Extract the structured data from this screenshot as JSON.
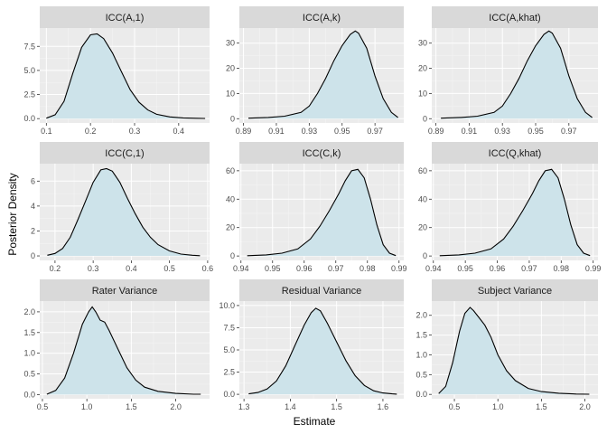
{
  "chart_data": {
    "type": "area",
    "layout": "facet-grid-3x3",
    "xlabel": "Estimate",
    "ylabel": "Posterior Density",
    "colors": {
      "panel_bg": "#ebebeb",
      "strip_bg": "#d9d9d9",
      "grid_major": "#ffffff",
      "grid_minor": "#f5f5f5",
      "fill": "#cde3ea",
      "line": "#000000"
    },
    "panels": [
      {
        "title": "ICC(A,1)",
        "xlim": [
          0.085,
          0.47
        ],
        "ylim": [
          -0.45,
          9.4
        ],
        "xticks": [
          0.1,
          0.2,
          0.3,
          0.4
        ],
        "xticklabels": [
          "0.1",
          "0.2",
          "0.3",
          "0.4"
        ],
        "yticks": [
          0,
          2.5,
          5,
          7.5
        ],
        "yticklabels": [
          "0.0",
          "2.5",
          "5.0",
          "7.5"
        ],
        "x": [
          0.1,
          0.12,
          0.14,
          0.16,
          0.18,
          0.2,
          0.215,
          0.23,
          0.25,
          0.27,
          0.29,
          0.31,
          0.33,
          0.35,
          0.38,
          0.41,
          0.44,
          0.46
        ],
        "y": [
          0.05,
          0.4,
          1.8,
          4.7,
          7.4,
          8.7,
          8.8,
          8.3,
          6.8,
          4.9,
          3.0,
          1.7,
          0.9,
          0.45,
          0.18,
          0.08,
          0.04,
          0.02
        ]
      },
      {
        "title": "ICC(A,k)",
        "xlim": [
          0.8875,
          0.9875
        ],
        "ylim": [
          -1.7,
          36.0
        ],
        "xticks": [
          0.89,
          0.91,
          0.93,
          0.95,
          0.97
        ],
        "xticklabels": [
          "0.89",
          "0.91",
          "0.93",
          "0.95",
          "0.97"
        ],
        "yticks": [
          0,
          10,
          20,
          30
        ],
        "yticklabels": [
          "0",
          "10",
          "20",
          "30"
        ],
        "x": [
          0.893,
          0.905,
          0.915,
          0.925,
          0.93,
          0.935,
          0.94,
          0.945,
          0.95,
          0.955,
          0.958,
          0.96,
          0.965,
          0.97,
          0.975,
          0.98,
          0.984
        ],
        "y": [
          0.2,
          0.5,
          1.0,
          2.5,
          5.0,
          10.0,
          16.0,
          23.0,
          29.0,
          33.5,
          34.8,
          34.0,
          28.0,
          17.0,
          8.0,
          2.5,
          0.5
        ]
      },
      {
        "title": "ICC(A,khat)",
        "xlim": [
          0.8875,
          0.9875
        ],
        "ylim": [
          -1.7,
          36.0
        ],
        "xticks": [
          0.89,
          0.91,
          0.93,
          0.95,
          0.97
        ],
        "xticklabels": [
          "0.89",
          "0.91",
          "0.93",
          "0.95",
          "0.97"
        ],
        "yticks": [
          0,
          10,
          20,
          30
        ],
        "yticklabels": [
          "0",
          "10",
          "20",
          "30"
        ],
        "x": [
          0.893,
          0.905,
          0.915,
          0.925,
          0.93,
          0.935,
          0.94,
          0.945,
          0.95,
          0.955,
          0.958,
          0.96,
          0.965,
          0.97,
          0.975,
          0.98,
          0.984
        ],
        "y": [
          0.2,
          0.5,
          1.0,
          2.5,
          5.0,
          10.0,
          16.0,
          23.0,
          29.0,
          33.5,
          34.8,
          34.0,
          28.0,
          17.0,
          8.0,
          2.5,
          0.5
        ]
      },
      {
        "title": "ICC(C,1)",
        "xlim": [
          0.16,
          0.605
        ],
        "ylim": [
          -0.36,
          7.4
        ],
        "xticks": [
          0.2,
          0.3,
          0.4,
          0.5,
          0.6
        ],
        "xticklabels": [
          "0.2",
          "0.3",
          "0.4",
          "0.5",
          "0.6"
        ],
        "yticks": [
          0,
          2,
          4,
          6
        ],
        "yticklabels": [
          "0",
          "2",
          "4",
          "6"
        ],
        "x": [
          0.18,
          0.2,
          0.22,
          0.24,
          0.26,
          0.28,
          0.3,
          0.32,
          0.335,
          0.35,
          0.37,
          0.39,
          0.41,
          0.43,
          0.45,
          0.47,
          0.5,
          0.53,
          0.56,
          0.58
        ],
        "y": [
          0.05,
          0.2,
          0.6,
          1.5,
          2.9,
          4.4,
          5.9,
          6.9,
          7.0,
          6.8,
          5.9,
          4.6,
          3.4,
          2.3,
          1.5,
          0.9,
          0.4,
          0.15,
          0.05,
          0.02
        ]
      },
      {
        "title": "ICC(C,k)",
        "xlim": [
          0.9395,
          0.9915
        ],
        "ylim": [
          -3.1,
          65.0
        ],
        "xticks": [
          0.94,
          0.95,
          0.96,
          0.97,
          0.98,
          0.99
        ],
        "xticklabels": [
          "0.94",
          "0.95",
          "0.96",
          "0.97",
          "0.98",
          "0.99"
        ],
        "yticks": [
          0,
          20,
          40,
          60
        ],
        "yticklabels": [
          "0",
          "20",
          "40",
          "60"
        ],
        "x": [
          0.942,
          0.948,
          0.953,
          0.958,
          0.962,
          0.965,
          0.968,
          0.971,
          0.973,
          0.975,
          0.977,
          0.979,
          0.981,
          0.983,
          0.985,
          0.987,
          0.989
        ],
        "y": [
          0.2,
          0.8,
          2.0,
          5.0,
          12.0,
          21.0,
          32.0,
          44.0,
          53.0,
          60.0,
          61.0,
          55.0,
          40.0,
          22.0,
          8.0,
          2.0,
          0.3
        ]
      },
      {
        "title": "ICC(Q,khat)",
        "xlim": [
          0.9395,
          0.9915
        ],
        "ylim": [
          -3.1,
          65.0
        ],
        "xticks": [
          0.94,
          0.95,
          0.96,
          0.97,
          0.98,
          0.99
        ],
        "xticklabels": [
          "0.94",
          "0.95",
          "0.96",
          "0.97",
          "0.98",
          "0.99"
        ],
        "yticks": [
          0,
          20,
          40,
          60
        ],
        "yticklabels": [
          "0",
          "20",
          "40",
          "60"
        ],
        "x": [
          0.942,
          0.948,
          0.953,
          0.958,
          0.962,
          0.965,
          0.968,
          0.971,
          0.973,
          0.975,
          0.977,
          0.979,
          0.981,
          0.983,
          0.985,
          0.987,
          0.989
        ],
        "y": [
          0.2,
          0.8,
          2.0,
          5.0,
          12.0,
          21.0,
          32.0,
          44.0,
          53.0,
          60.0,
          61.0,
          55.0,
          40.0,
          22.0,
          8.0,
          2.0,
          0.3
        ]
      },
      {
        "title": "Rater Variance",
        "xlim": [
          0.47,
          2.38
        ],
        "ylim": [
          -0.1,
          2.26
        ],
        "xticks": [
          0.5,
          1.0,
          1.5,
          2.0
        ],
        "xticklabels": [
          "0.5",
          "1.0",
          "1.5",
          "2.0"
        ],
        "yticks": [
          0,
          0.5,
          1.0,
          1.5,
          2.0
        ],
        "yticklabels": [
          "0.0",
          "0.5",
          "1.0",
          "1.5",
          "2.0"
        ],
        "x": [
          0.55,
          0.65,
          0.75,
          0.85,
          0.95,
          1.02,
          1.06,
          1.1,
          1.15,
          1.2,
          1.25,
          1.35,
          1.45,
          1.55,
          1.65,
          1.8,
          2.0,
          2.2,
          2.28
        ],
        "y": [
          0.01,
          0.1,
          0.4,
          1.0,
          1.7,
          2.0,
          2.12,
          2.0,
          1.8,
          1.75,
          1.55,
          1.1,
          0.65,
          0.35,
          0.18,
          0.08,
          0.03,
          0.01,
          0.01
        ]
      },
      {
        "title": "Residual Variance",
        "xlim": [
          1.29,
          1.645
        ],
        "ylim": [
          -0.5,
          10.5
        ],
        "xticks": [
          1.3,
          1.4,
          1.5,
          1.6
        ],
        "xticklabels": [
          "1.3",
          "1.4",
          "1.5",
          "1.6"
        ],
        "yticks": [
          0,
          2.5,
          5.0,
          7.5,
          10.0
        ],
        "yticklabels": [
          "0.0",
          "2.5",
          "5.0",
          "7.5",
          "10.0"
        ],
        "x": [
          1.31,
          1.33,
          1.35,
          1.37,
          1.39,
          1.41,
          1.43,
          1.445,
          1.455,
          1.465,
          1.48,
          1.5,
          1.52,
          1.54,
          1.56,
          1.58,
          1.6,
          1.62,
          1.63
        ],
        "y": [
          0.05,
          0.2,
          0.6,
          1.5,
          3.2,
          5.5,
          7.8,
          9.2,
          9.7,
          9.4,
          8.0,
          5.9,
          3.8,
          2.1,
          1.0,
          0.4,
          0.15,
          0.05,
          0.02
        ]
      },
      {
        "title": "Subject Variance",
        "xlim": [
          0.24,
          2.15
        ],
        "ylim": [
          -0.11,
          2.36
        ],
        "xticks": [
          0.5,
          1.0,
          1.5,
          2.0
        ],
        "xticklabels": [
          "0.5",
          "1.0",
          "1.5",
          "2.0"
        ],
        "yticks": [
          0,
          0.5,
          1.0,
          1.5,
          2.0
        ],
        "yticklabels": [
          "0.0",
          "0.5",
          "1.0",
          "1.5",
          "2.0"
        ],
        "x": [
          0.32,
          0.4,
          0.48,
          0.56,
          0.62,
          0.68,
          0.72,
          0.78,
          0.85,
          0.92,
          1.0,
          1.1,
          1.2,
          1.35,
          1.5,
          1.7,
          1.9,
          2.05
        ],
        "y": [
          0.02,
          0.2,
          0.8,
          1.6,
          2.05,
          2.2,
          2.12,
          1.95,
          1.75,
          1.45,
          1.0,
          0.6,
          0.35,
          0.15,
          0.07,
          0.03,
          0.01,
          0.005
        ]
      }
    ]
  }
}
